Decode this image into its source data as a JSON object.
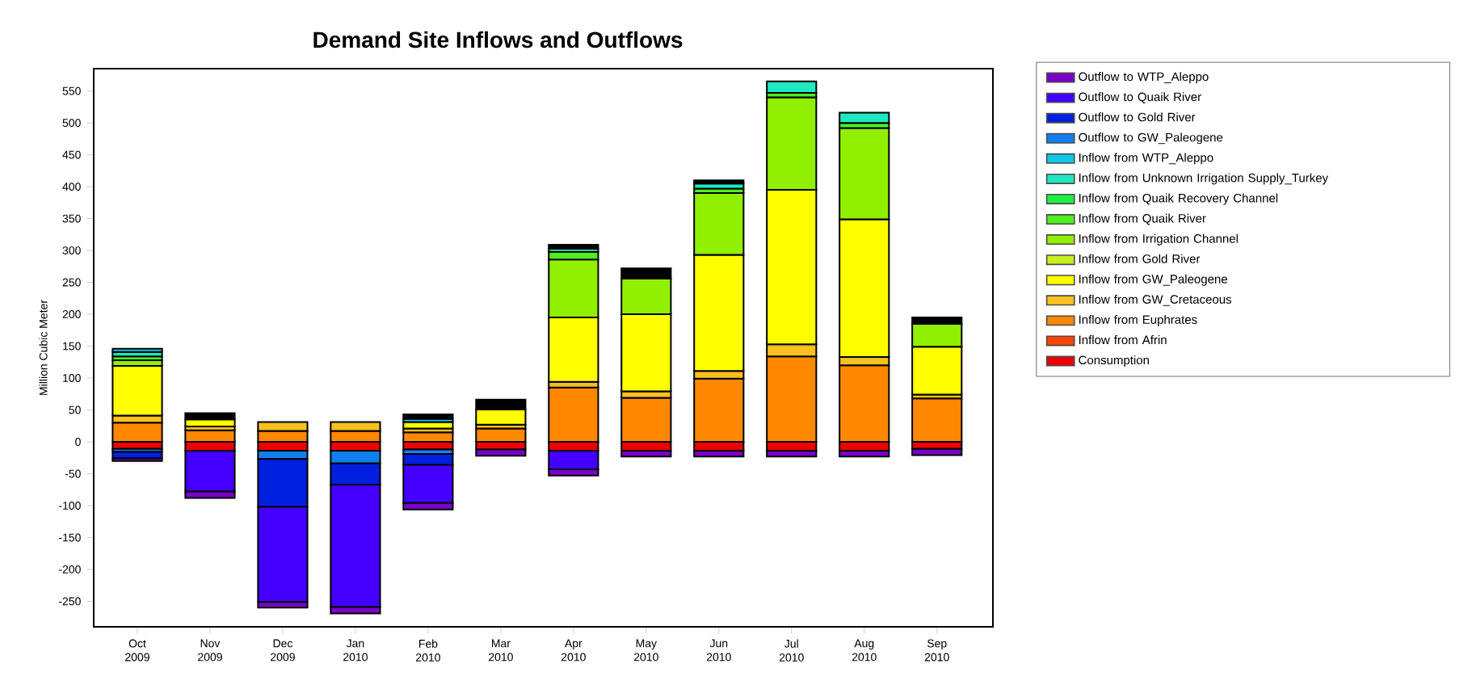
{
  "chart_data": {
    "type": "bar",
    "title": "Demand Site Inflows and Outflows",
    "ylabel": "Million Cubic Meter",
    "categories": [
      "Oct 2009",
      "Nov 2009",
      "Dec 2009",
      "Jan 2010",
      "Feb 2010",
      "Mar 2010",
      "Apr 2010",
      "May 2010",
      "Jun 2010",
      "Jul 2010",
      "Aug 2010",
      "Sep 2010"
    ],
    "stacked": true,
    "legend": "top right",
    "ylim": [
      -290,
      585
    ],
    "yticks": [
      -250,
      -200,
      -150,
      -100,
      -50,
      0,
      50,
      100,
      150,
      200,
      250,
      300,
      350,
      400,
      450,
      500,
      550
    ],
    "series": [
      {
        "name": "Consumption",
        "color": "#ee0000",
        "values": [
          -11,
          -14,
          -14,
          -14,
          -12,
          -12,
          -14,
          -14,
          -14,
          -14,
          -14,
          -11
        ]
      },
      {
        "name": "Inflow from Afrin",
        "color": "#ff4400",
        "values": [
          null,
          null,
          null,
          null,
          null,
          null,
          null,
          null,
          null,
          null,
          null,
          null
        ]
      },
      {
        "name": "Inflow from Euphrates",
        "color": "#ff8800",
        "values": [
          30,
          18,
          17,
          17,
          15,
          21,
          85,
          69,
          99,
          134,
          120,
          68
        ]
      },
      {
        "name": "Inflow from GW_Cretaceous",
        "color": "#f8c020",
        "values": [
          11,
          6,
          14,
          14,
          6,
          6,
          9,
          10,
          12,
          19,
          13,
          6
        ]
      },
      {
        "name": "Inflow from GW_Paleogene",
        "color": "#ffff00",
        "values": [
          78,
          11,
          null,
          null,
          10,
          24,
          101,
          121,
          182,
          242,
          216,
          75
        ]
      },
      {
        "name": "Inflow from Gold River",
        "color": "#c8f020",
        "values": [
          null,
          null,
          null,
          null,
          null,
          null,
          null,
          null,
          null,
          null,
          null,
          null
        ]
      },
      {
        "name": "Inflow from Irrigation Channel",
        "color": "#90f000",
        "values": [
          9,
          null,
          null,
          null,
          null,
          null,
          91,
          56,
          97,
          145,
          143,
          36
        ]
      },
      {
        "name": "Inflow from Quaik  River",
        "color": "#50f020",
        "values": [
          6,
          null,
          null,
          null,
          null,
          null,
          12,
          null,
          7,
          7,
          8,
          null
        ]
      },
      {
        "name": "Inflow from Quaik Recovery Channel",
        "color": "#20f040",
        "values": [
          null,
          null,
          null,
          null,
          null,
          null,
          null,
          null,
          null,
          null,
          null,
          null
        ]
      },
      {
        "name": "Inflow from Unknown Irrigation Supply_Turkey",
        "color": "#20e8c0",
        "values": [
          7,
          null,
          null,
          null,
          null,
          null,
          5,
          null,
          8,
          18,
          16,
          null
        ]
      },
      {
        "name": "Inflow from WTP_Aleppo",
        "color": "#10c8e8",
        "values": [
          5,
          null,
          null,
          null,
          5,
          null,
          null,
          null,
          null,
          null,
          null,
          null
        ]
      },
      {
        "name": "Outflow to GW_Paleogene",
        "color": "#1080f0",
        "values": [
          -5,
          null,
          -13,
          -20,
          -7,
          null,
          null,
          null,
          null,
          null,
          null,
          null
        ]
      },
      {
        "name": "Outflow to Gold River",
        "color": "#0020e0",
        "values": [
          -10,
          null,
          -75,
          -33,
          -17,
          null,
          null,
          null,
          null,
          null,
          null,
          null
        ]
      },
      {
        "name": "Outflow to Quaik  River",
        "color": "#4400ff",
        "values": [
          null,
          -64,
          -149,
          -192,
          -60,
          null,
          -29,
          null,
          null,
          null,
          null,
          null
        ]
      },
      {
        "name": "Outflow to WTP_Aleppo",
        "color": "#7a00c8",
        "values": [
          -4,
          -10,
          -9,
          -10,
          -10,
          -10,
          -10,
          -9,
          -9,
          -9,
          -9,
          -10
        ]
      },
      {
        "color": "#000000",
        "values": [
          null,
          10,
          null,
          null,
          7,
          15,
          6,
          16,
          5,
          null,
          null,
          10
        ]
      }
    ]
  }
}
